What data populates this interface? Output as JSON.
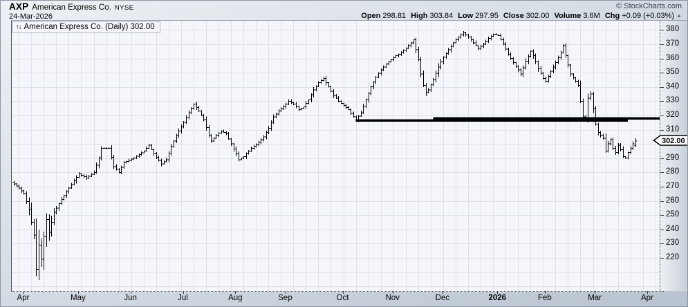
{
  "header": {
    "symbol": "AXP",
    "company": "American Express Co.",
    "exchange": "NYSE",
    "date": "24-Mar-2026",
    "copyright": "© StockCharts.com",
    "quote_items": [
      [
        "Open",
        "298.81"
      ],
      [
        "High",
        "303.84"
      ],
      [
        "Low",
        "297.95"
      ],
      [
        "Close",
        "302.00"
      ],
      [
        "Volume",
        "3.6M"
      ],
      [
        "Chg",
        "+0.09 (+0.03%)"
      ]
    ],
    "change_direction": "up"
  },
  "icons": {
    "up_triangle": "▲",
    "up_down_arrows": "↑↓"
  },
  "legend": {
    "text": "American Express Co. (Daily) 302.00"
  },
  "y_axis_callout": "302.00",
  "colors": {
    "bar": "#000000",
    "grid": "#dce1ee",
    "plot_bg": "#f5f6fa",
    "support_line": "#000000",
    "callout_bg": "#ffffff",
    "callout_border": "#000000"
  },
  "chart_data": {
    "type": "ohlc",
    "title": "American Express Co. (Daily)",
    "symbol": "AXP",
    "timeframe": "Daily",
    "last_value": 302.0,
    "y_axis": {
      "min": 220,
      "max": 380,
      "tick_step": 10,
      "tick_labels": [
        380,
        370,
        360,
        350,
        340,
        330,
        320,
        310,
        300,
        290,
        280,
        270,
        260,
        250,
        240,
        230,
        220
      ]
    },
    "x_axis": {
      "month_labels": [
        {
          "label": "Apr",
          "day": 4
        },
        {
          "label": "May",
          "day": 26
        },
        {
          "label": "Jun",
          "day": 47
        },
        {
          "label": "Jul",
          "day": 68
        },
        {
          "label": "Aug",
          "day": 89
        },
        {
          "label": "Sep",
          "day": 109
        },
        {
          "label": "Oct",
          "day": 132
        },
        {
          "label": "Nov",
          "day": 152
        },
        {
          "label": "Dec",
          "day": 172
        },
        {
          "label": "2026",
          "day": 194,
          "bold": true
        },
        {
          "label": "Feb",
          "day": 213
        },
        {
          "label": "Mar",
          "day": 233
        },
        {
          "label": "Apr",
          "day": 254
        }
      ]
    },
    "last_bar": {
      "date": "24-Mar-2026",
      "open": 298.81,
      "high": 303.84,
      "low": 297.95,
      "close": 302.0,
      "volume": "3.6M",
      "change": "+0.09 (+0.03%)"
    },
    "support_lines": [
      {
        "value": 316.4,
        "from_day": 137,
        "to_day": 246
      },
      {
        "value": 317.9,
        "from_day": 168,
        "to_day": 259
      }
    ],
    "days_total": 250,
    "high_volatility": {
      "from_day": 6,
      "to_day": 16,
      "range_multiplier": 2.3
    },
    "close_anchors": [
      [
        0,
        272
      ],
      [
        2,
        269
      ],
      [
        4,
        265
      ],
      [
        6,
        254
      ],
      [
        8,
        236
      ],
      [
        9,
        212
      ],
      [
        10,
        229
      ],
      [
        11,
        219
      ],
      [
        12,
        235
      ],
      [
        13,
        247
      ],
      [
        14,
        238
      ],
      [
        16,
        252
      ],
      [
        19,
        261
      ],
      [
        22,
        269
      ],
      [
        26,
        279
      ],
      [
        29,
        276
      ],
      [
        32,
        280
      ],
      [
        34,
        290
      ],
      [
        35,
        297
      ],
      [
        38,
        297
      ],
      [
        40,
        284
      ],
      [
        42,
        280
      ],
      [
        44,
        287
      ],
      [
        48,
        290
      ],
      [
        52,
        295
      ],
      [
        54,
        299
      ],
      [
        56,
        293
      ],
      [
        59,
        286
      ],
      [
        61,
        289
      ],
      [
        63,
        298
      ],
      [
        65,
        306
      ],
      [
        68,
        315
      ],
      [
        70,
        322
      ],
      [
        72,
        328
      ],
      [
        74,
        323
      ],
      [
        76,
        317
      ],
      [
        78,
        306
      ],
      [
        79,
        302
      ],
      [
        81,
        306
      ],
      [
        83,
        309
      ],
      [
        85,
        307
      ],
      [
        87,
        300
      ],
      [
        89,
        293
      ],
      [
        90,
        289
      ],
      [
        92,
        291
      ],
      [
        95,
        297
      ],
      [
        98,
        301
      ],
      [
        100,
        305
      ],
      [
        102,
        311
      ],
      [
        104,
        319
      ],
      [
        106,
        323
      ],
      [
        108,
        326
      ],
      [
        110,
        330
      ],
      [
        112,
        328
      ],
      [
        114,
        324
      ],
      [
        116,
        326
      ],
      [
        118,
        331
      ],
      [
        120,
        338
      ],
      [
        122,
        343
      ],
      [
        124,
        346
      ],
      [
        126,
        340
      ],
      [
        128,
        334
      ],
      [
        130,
        330
      ],
      [
        132,
        327
      ],
      [
        134,
        324
      ],
      [
        136,
        319
      ],
      [
        137,
        317
      ],
      [
        139,
        322
      ],
      [
        141,
        331
      ],
      [
        143,
        340
      ],
      [
        145,
        347
      ],
      [
        147,
        352
      ],
      [
        149,
        356
      ],
      [
        151,
        359
      ],
      [
        153,
        362
      ],
      [
        155,
        364
      ],
      [
        157,
        367
      ],
      [
        159,
        371
      ],
      [
        160,
        373
      ],
      [
        161,
        366
      ],
      [
        162,
        359
      ],
      [
        163,
        349
      ],
      [
        164,
        341
      ],
      [
        165,
        336
      ],
      [
        166,
        338
      ],
      [
        168,
        345
      ],
      [
        170,
        354
      ],
      [
        172,
        361
      ],
      [
        174,
        366
      ],
      [
        176,
        371
      ],
      [
        178,
        375
      ],
      [
        180,
        378
      ],
      [
        182,
        375
      ],
      [
        184,
        371
      ],
      [
        186,
        367
      ],
      [
        188,
        370
      ],
      [
        190,
        374
      ],
      [
        192,
        377
      ],
      [
        194,
        376
      ],
      [
        196,
        370
      ],
      [
        198,
        363
      ],
      [
        200,
        357
      ],
      [
        202,
        352
      ],
      [
        203,
        349
      ],
      [
        205,
        358
      ],
      [
        207,
        365
      ],
      [
        208,
        362
      ],
      [
        210,
        353
      ],
      [
        212,
        346
      ],
      [
        213,
        344
      ],
      [
        215,
        351
      ],
      [
        217,
        357
      ],
      [
        219,
        364
      ],
      [
        220,
        369
      ],
      [
        221,
        362
      ],
      [
        223,
        349
      ],
      [
        225,
        344
      ],
      [
        226,
        341
      ],
      [
        227,
        330
      ],
      [
        228,
        319
      ],
      [
        229,
        318
      ],
      [
        230,
        332
      ],
      [
        231,
        335
      ],
      [
        232,
        325
      ],
      [
        233,
        314
      ],
      [
        234,
        308
      ],
      [
        236,
        304
      ],
      [
        237,
        295
      ],
      [
        238,
        300
      ],
      [
        239,
        303
      ],
      [
        240,
        297
      ],
      [
        241,
        294
      ],
      [
        242,
        299
      ],
      [
        243,
        296
      ],
      [
        244,
        291
      ],
      [
        245,
        290
      ],
      [
        246,
        294
      ],
      [
        247,
        297
      ],
      [
        248,
        300
      ],
      [
        249,
        302
      ]
    ]
  }
}
